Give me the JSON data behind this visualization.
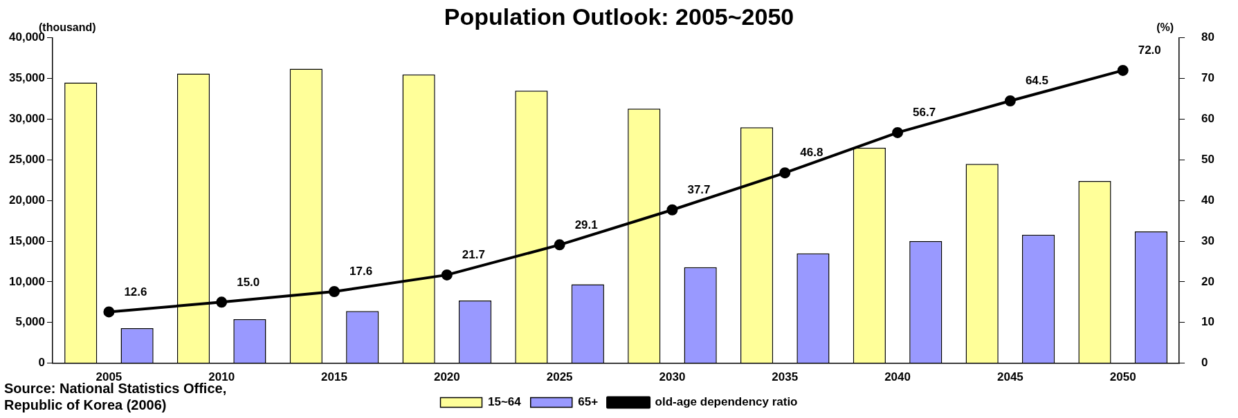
{
  "chart_data": {
    "type": "bar",
    "title": "Population Outlook: 2005~2050",
    "ylabel": "(thousand)",
    "y2label": "(%)",
    "categories": [
      "2005",
      "2010",
      "2015",
      "2020",
      "2025",
      "2030",
      "2035",
      "2040",
      "2045",
      "2050"
    ],
    "series": [
      {
        "name": "15~64",
        "color": "#ffff99",
        "values": [
          34500,
          35600,
          36200,
          35500,
          33500,
          31300,
          29000,
          26500,
          24500,
          22400
        ]
      },
      {
        "name": "65+",
        "color": "#9999ff",
        "values": [
          4300,
          5400,
          6400,
          7700,
          9700,
          11800,
          13500,
          15000,
          15800,
          16200
        ]
      },
      {
        "name": "old-age dependency ratio",
        "type": "line",
        "axis": "y2",
        "color": "#000000",
        "marker": "circle",
        "data_labels": true,
        "values": [
          12.6,
          15.0,
          17.6,
          21.7,
          29.1,
          37.7,
          46.8,
          56.7,
          64.5,
          72.0
        ],
        "value_labels": [
          "12.6",
          "15.0",
          "17.6",
          "21.7",
          "29.1",
          "37.7",
          "46.8",
          "56.7",
          "64.5",
          "72.0"
        ]
      }
    ],
    "ylim": [
      0,
      40000
    ],
    "yticks": [
      0,
      {
        "value": 5000,
        "label": "5,000"
      },
      {
        "value": 10000,
        "label": "10,000"
      },
      {
        "value": 15000,
        "label": "15,000"
      },
      {
        "value": 20000,
        "label": "20,000"
      },
      {
        "value": 25000,
        "label": "25,000"
      },
      {
        "value": 30000,
        "label": "30,000"
      },
      {
        "value": 35000,
        "label": "35,000"
      },
      {
        "value": 40000,
        "label": "40,000"
      }
    ],
    "y2lim": [
      0,
      80
    ],
    "y2ticks": [
      0,
      10,
      20,
      30,
      40,
      50,
      60,
      70,
      80
    ],
    "grid": false,
    "legend": "bottom",
    "annotations": [
      "Source: National Statistics Office, Republic of Korea (2006)"
    ]
  }
}
